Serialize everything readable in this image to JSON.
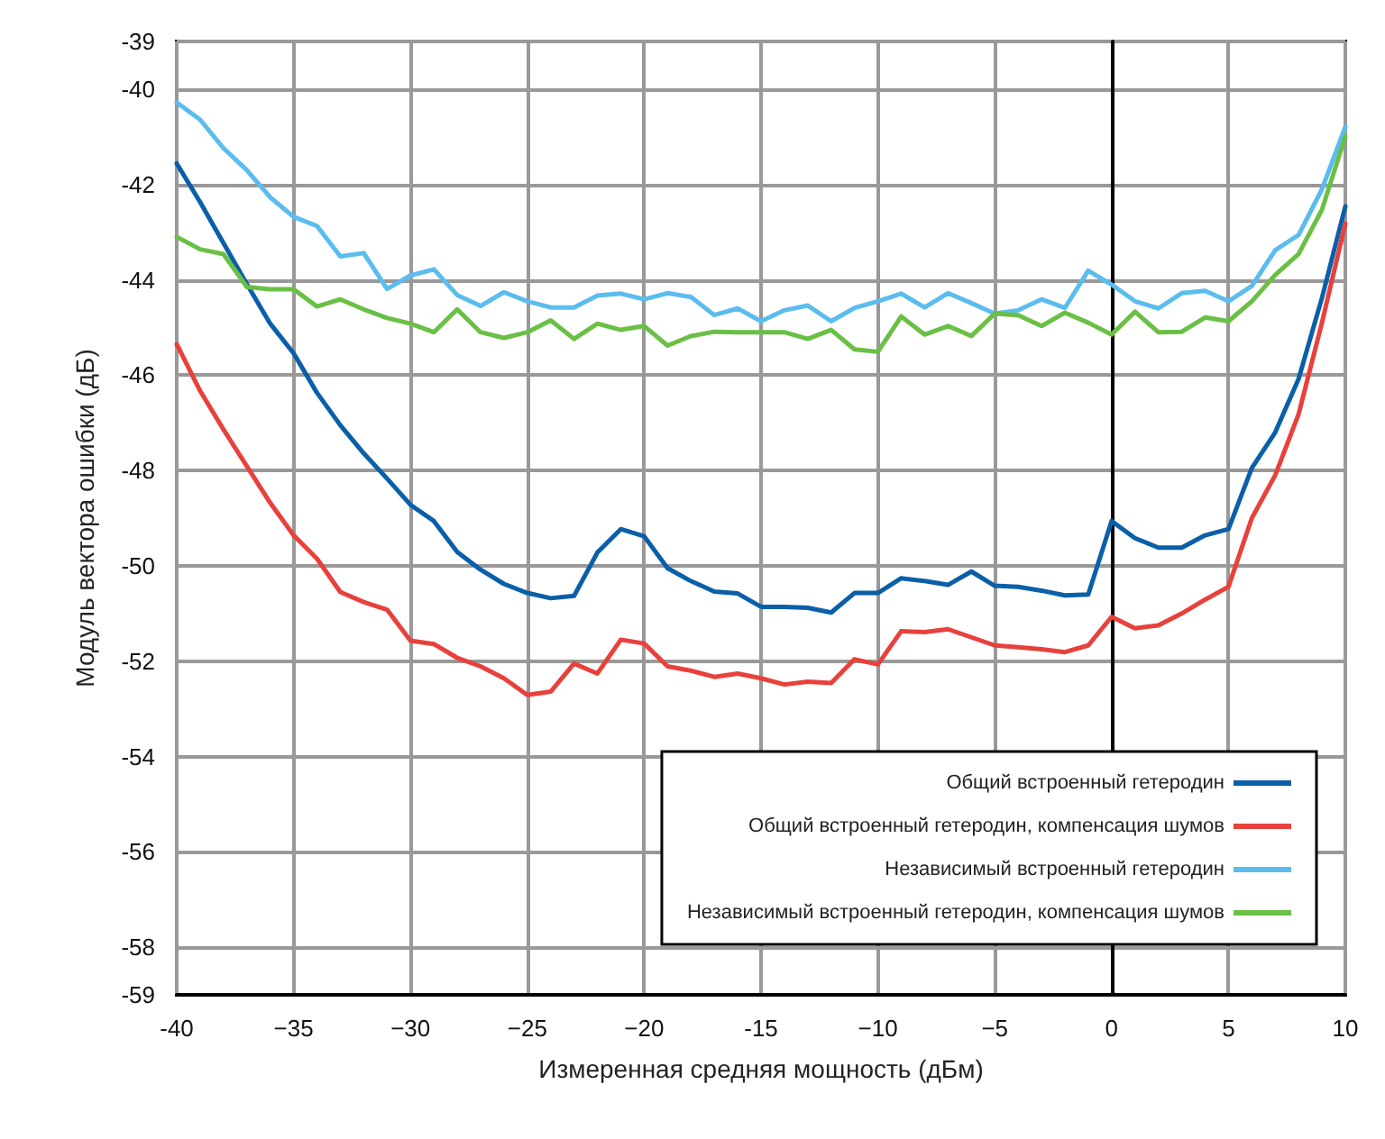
{
  "chart_data": {
    "type": "line",
    "xlabel": "Измеренная средняя мощность (дБм)",
    "ylabel": "Модуль вектора ошибки (дБ)",
    "x": [
      -40,
      -39,
      -38,
      -37,
      -36,
      -35,
      -34,
      -33,
      -32,
      -31,
      -30,
      -29,
      -28,
      -27,
      -26,
      -25,
      -24,
      -23,
      -22,
      -21,
      -20,
      -19,
      -18,
      -17,
      -16,
      -15,
      -14,
      -13,
      -12,
      -11,
      -10,
      -9,
      -8,
      -7,
      -6,
      -5,
      -4,
      -3,
      -2,
      -1,
      0,
      1,
      2,
      3,
      4,
      5,
      6,
      7,
      8,
      9,
      10
    ],
    "series": [
      {
        "name": "Общий встроенный гетеродин",
        "color": "#0a5fa8",
        "values": [
          -41.56,
          -42.37,
          -43.23,
          -44.09,
          -44.92,
          -45.54,
          -46.37,
          -47.05,
          -47.64,
          -48.17,
          -48.72,
          -49.06,
          -49.71,
          -50.08,
          -50.38,
          -50.57,
          -50.68,
          -50.63,
          -49.72,
          -49.23,
          -49.38,
          -50.05,
          -50.32,
          -50.54,
          -50.58,
          -50.86,
          -50.86,
          -50.88,
          -50.98,
          -50.57,
          -50.57,
          -50.26,
          -50.32,
          -50.4,
          -50.12,
          -50.42,
          -50.44,
          -50.52,
          -50.62,
          -50.6,
          -49.06,
          -49.42,
          -49.62,
          -49.62,
          -49.36,
          -49.23,
          -47.95,
          -47.2,
          -46.08,
          -44.38,
          -42.46
        ]
      },
      {
        "name": "Общий встроенный гетеродин, компенсация шумов",
        "color": "#e8413c",
        "values": [
          -45.35,
          -46.33,
          -47.14,
          -47.91,
          -48.68,
          -49.36,
          -49.85,
          -50.55,
          -50.76,
          -50.92,
          -51.57,
          -51.64,
          -51.93,
          -52.11,
          -52.36,
          -52.71,
          -52.64,
          -52.05,
          -52.26,
          -51.55,
          -51.63,
          -52.11,
          -52.2,
          -52.33,
          -52.26,
          -52.36,
          -52.49,
          -52.43,
          -52.46,
          -51.96,
          -52.07,
          -51.37,
          -51.39,
          -51.33,
          -51.5,
          -51.67,
          -51.71,
          -51.75,
          -51.81,
          -51.67,
          -51.07,
          -51.31,
          -51.25,
          -51.0,
          -50.71,
          -50.44,
          -49.0,
          -48.1,
          -46.82,
          -44.9,
          -42.82
        ]
      },
      {
        "name": "Независимый встроенный гетеродин",
        "color": "#5bbcee",
        "values": [
          -40.28,
          -40.64,
          -41.24,
          -41.7,
          -42.27,
          -42.68,
          -42.87,
          -43.51,
          -43.44,
          -44.19,
          -43.91,
          -43.78,
          -44.32,
          -44.55,
          -44.26,
          -44.45,
          -44.58,
          -44.58,
          -44.33,
          -44.29,
          -44.41,
          -44.28,
          -44.36,
          -44.74,
          -44.6,
          -44.87,
          -44.64,
          -44.54,
          -44.87,
          -44.59,
          -44.45,
          -44.29,
          -44.58,
          -44.28,
          -44.49,
          -44.71,
          -44.64,
          -44.41,
          -44.59,
          -43.81,
          -44.1,
          -44.45,
          -44.6,
          -44.28,
          -44.23,
          -44.45,
          -44.13,
          -43.38,
          -43.06,
          -42.1,
          -40.79
        ]
      },
      {
        "name": "Независимый встроенный гетеродин, компенсация шумов",
        "color": "#6abf45",
        "values": [
          -43.1,
          -43.36,
          -43.46,
          -44.15,
          -44.2,
          -44.2,
          -44.56,
          -44.41,
          -44.62,
          -44.8,
          -44.92,
          -45.1,
          -44.62,
          -45.1,
          -45.22,
          -45.1,
          -44.85,
          -45.24,
          -44.92,
          -45.05,
          -44.97,
          -45.38,
          -45.18,
          -45.09,
          -45.1,
          -45.1,
          -45.1,
          -45.24,
          -45.05,
          -45.46,
          -45.51,
          -44.77,
          -45.15,
          -44.97,
          -45.18,
          -44.71,
          -44.74,
          -44.97,
          -44.69,
          -44.9,
          -45.15,
          -44.67,
          -45.1,
          -45.09,
          -44.79,
          -44.87,
          -44.45,
          -43.9,
          -43.46,
          -42.53,
          -40.99
        ]
      }
    ],
    "xlim": [
      -40,
      10
    ],
    "xticks": [
      -40,
      {
        "value": -35,
        "label": "−35"
      },
      {
        "value": -30,
        "label": "−30"
      },
      {
        "value": -25,
        "label": "−25"
      },
      {
        "value": -20,
        "label": "−20"
      },
      -15,
      {
        "value": -10,
        "label": "−10"
      },
      {
        "value": -5,
        "label": "−5"
      },
      0,
      5,
      10
    ],
    "ylim": [
      -59,
      -39
    ],
    "yticks": [
      -39,
      -40,
      -42,
      -44,
      -46,
      -48,
      -50,
      -52,
      -54,
      -56,
      -58,
      -59
    ],
    "grid": true,
    "legend": "bottom right",
    "marker": "none",
    "line_style": "solid"
  }
}
